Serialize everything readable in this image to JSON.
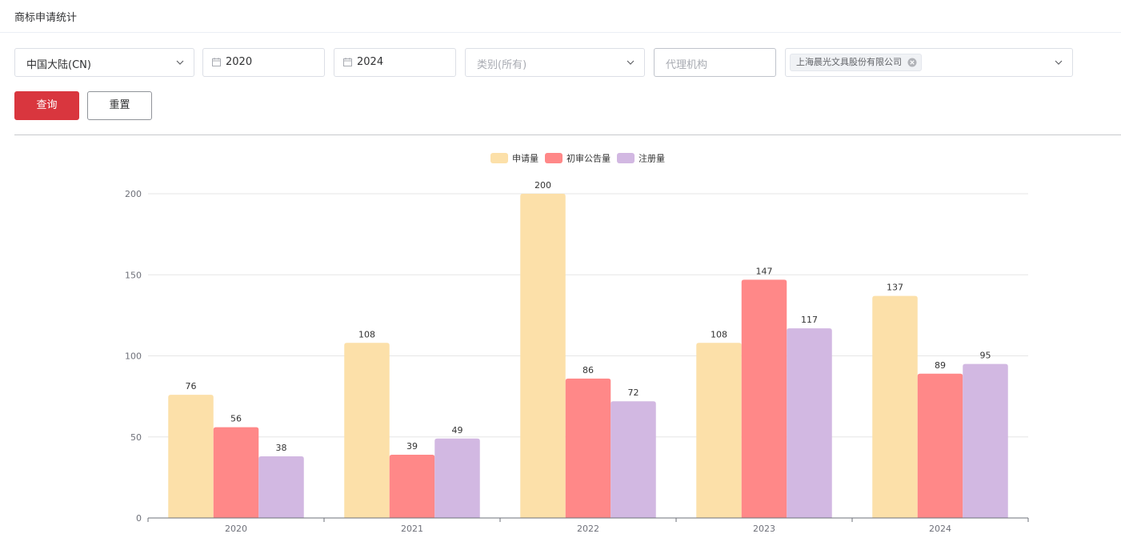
{
  "page": {
    "title": "商标申请统计"
  },
  "filters": {
    "region": {
      "value": "中国大陆(CN)"
    },
    "start_year": {
      "value": "2020"
    },
    "end_year": {
      "value": "2024"
    },
    "category": {
      "placeholder": "类别(所有)"
    },
    "agency": {
      "placeholder": "代理机构"
    },
    "applicant": {
      "tag": "上海晨光文具股份有限公司"
    }
  },
  "buttons": {
    "query": "查询",
    "reset": "重置"
  },
  "icons": {
    "calendar": "calendar-icon",
    "dropdown": "chevron-down-icon",
    "tag_close": "close-circle-icon"
  },
  "colors": {
    "primary": "#d9363e",
    "series_application": "#fce0a9",
    "series_publication": "#ff8888",
    "series_registration": "#d2b8e2"
  },
  "chart_data": {
    "type": "bar",
    "categories": [
      "2020",
      "2021",
      "2022",
      "2023",
      "2024"
    ],
    "series": [
      {
        "name": "申请量",
        "color": "#fce0a9",
        "values": [
          76,
          108,
          200,
          108,
          137
        ]
      },
      {
        "name": "初审公告量",
        "color": "#ff8888",
        "values": [
          56,
          39,
          86,
          147,
          89
        ]
      },
      {
        "name": "注册量",
        "color": "#d2b8e2",
        "values": [
          38,
          49,
          72,
          117,
          95
        ]
      }
    ],
    "y_ticks": [
      "0",
      "50",
      "100",
      "150",
      "200"
    ],
    "ylim": [
      0,
      200
    ],
    "grid": true,
    "legend_position": "top-center",
    "data_labels": true
  }
}
